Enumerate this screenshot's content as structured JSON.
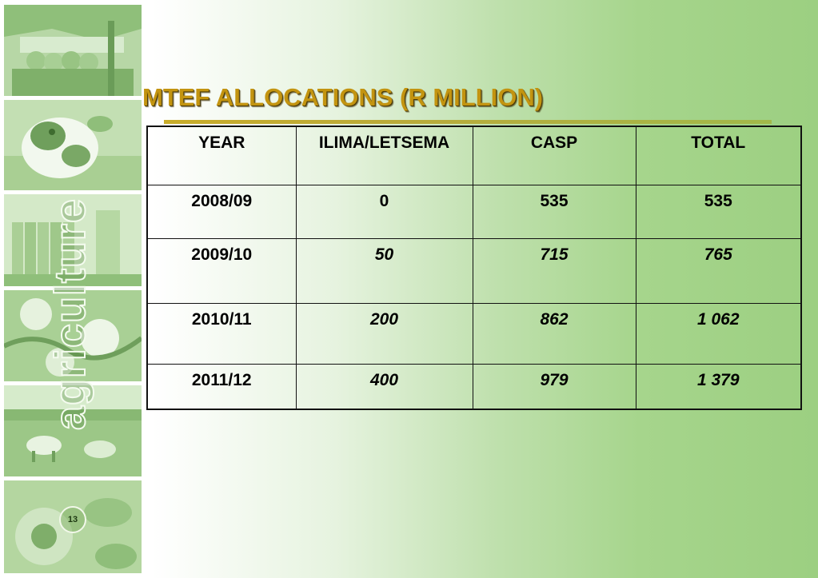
{
  "brand": {
    "word": "agriculture"
  },
  "slide": {
    "title": "MTEF ALLOCATIONS (R MILLION)",
    "page_number": "13"
  },
  "table": {
    "headers": [
      "YEAR",
      "ILIMA/LETSEMA",
      "CASP",
      "TOTAL"
    ],
    "rows": [
      {
        "year": "2008/09",
        "ilima": "0",
        "casp": "535",
        "total": "535"
      },
      {
        "year": "2009/10",
        "ilima": "50",
        "casp": "715",
        "total": "765"
      },
      {
        "year": "2010/11",
        "ilima": "200",
        "casp": "862",
        "total": "1 062"
      },
      {
        "year": "2011/12",
        "ilima": "400",
        "casp": "979",
        "total": "1 379"
      }
    ]
  },
  "photos": [
    {
      "icon": "market-stall-photo"
    },
    {
      "icon": "calf-photo"
    },
    {
      "icon": "grain-silo-photo"
    },
    {
      "icon": "cotton-plant-photo"
    },
    {
      "icon": "cattle-field-photo"
    },
    {
      "icon": "sunflower-photo"
    }
  ],
  "colors": {
    "title": "#c39410",
    "background_green": "#9ccf81",
    "strip_green": "#a9cf96"
  }
}
